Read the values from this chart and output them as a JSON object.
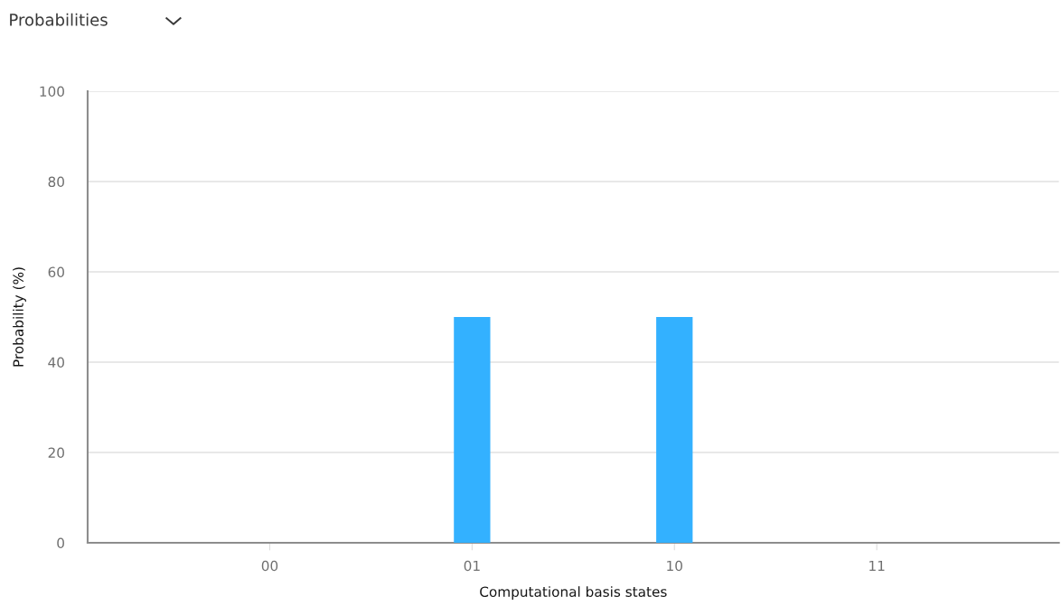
{
  "chart_data": {
    "type": "bar",
    "title": "Probabilities",
    "xlabel": "Computational basis states",
    "ylabel": "Probability (%)",
    "categories": [
      "00",
      "01",
      "10",
      "11"
    ],
    "values": [
      0,
      50,
      50,
      0
    ],
    "color": "#33b1ff",
    "ylim": [
      0,
      100
    ],
    "yticks": [
      0,
      20,
      40,
      60,
      80,
      100
    ],
    "grid": "y"
  }
}
